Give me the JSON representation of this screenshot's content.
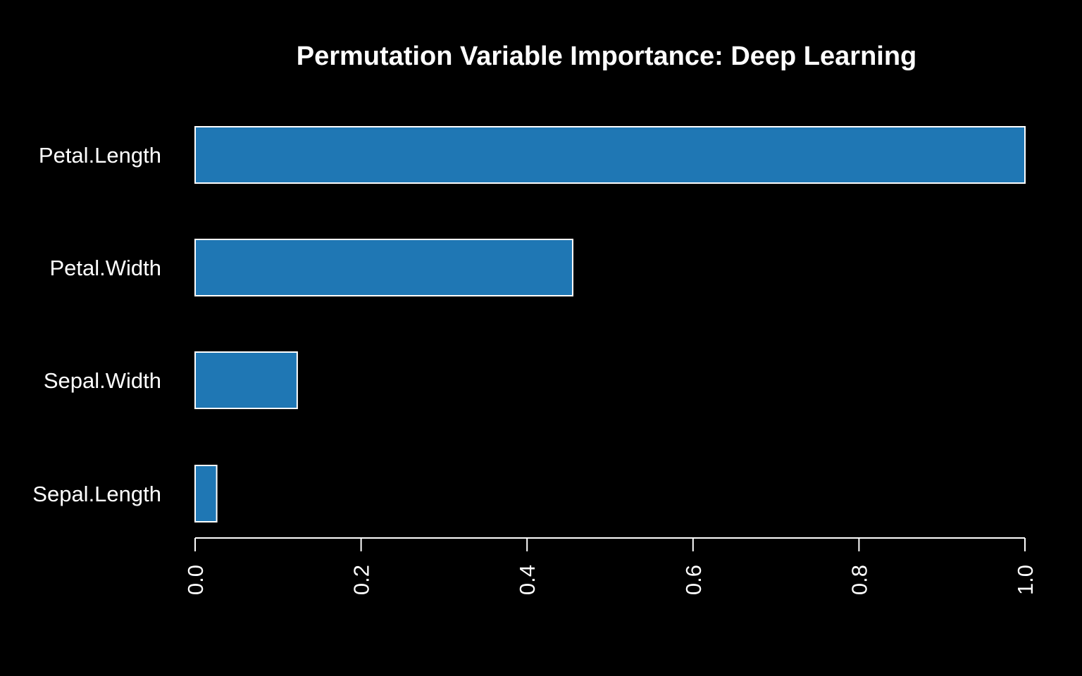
{
  "chart_data": {
    "type": "bar",
    "orientation": "horizontal",
    "title": "Permutation Variable Importance: Deep Learning",
    "xlabel": "",
    "ylabel": "",
    "categories": [
      "Petal.Length",
      "Petal.Width",
      "Sepal.Width",
      "Sepal.Length"
    ],
    "values": [
      1.0,
      0.455,
      0.123,
      0.026
    ],
    "xlim": [
      0,
      1
    ],
    "x_ticks": [
      "0.0",
      "0.2",
      "0.4",
      "0.6",
      "0.8",
      "1.0"
    ],
    "tick_label_rotation": "vertical",
    "grid": false,
    "legend": "none",
    "colors": {
      "background": "#000000",
      "bar_fill": "#1f77b4",
      "bar_outline": "#ffffff",
      "text": "#ffffff"
    }
  }
}
